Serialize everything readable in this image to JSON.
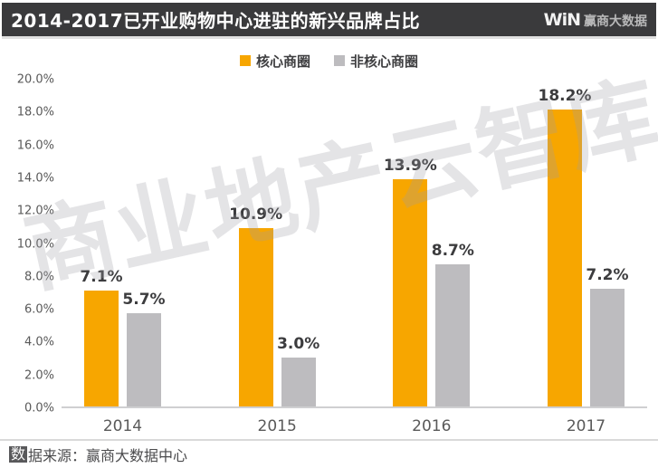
{
  "header": {
    "title": "2014-2017已开业购物中心进驻的新兴品牌占比",
    "logo_win": "WiN",
    "logo_text": "赢商大数据"
  },
  "watermark": "商业地产云智库",
  "footer": {
    "highlight_char": "数",
    "source_text": "据来源：赢商大数据中心"
  },
  "chart_data": {
    "type": "bar",
    "title": "2014-2017已开业购物中心进驻的新兴品牌占比",
    "categories": [
      "2014",
      "2015",
      "2016",
      "2017"
    ],
    "series": [
      {
        "name": "核心商圈",
        "color": "#F7A600",
        "values": [
          7.1,
          10.9,
          13.9,
          18.2
        ],
        "labels": [
          "7.1%",
          "10.9%",
          "13.9%",
          "18.2%"
        ]
      },
      {
        "name": "非核心商圈",
        "color": "#BDBCBF",
        "values": [
          5.7,
          3.0,
          8.7,
          7.2
        ],
        "labels": [
          "5.7%",
          "3.0%",
          "8.7%",
          "7.2%"
        ]
      }
    ],
    "xlabel": "",
    "ylabel": "",
    "ylim": [
      0,
      20
    ],
    "ytick_labels": [
      "20.0%",
      "18.0%",
      "16.0%",
      "14.0%",
      "12.0%",
      "10.0%",
      "8.0%",
      "6.0%",
      "4.0%",
      "2.0%",
      "0.0%"
    ],
    "grid": false,
    "legend_position": "top"
  }
}
